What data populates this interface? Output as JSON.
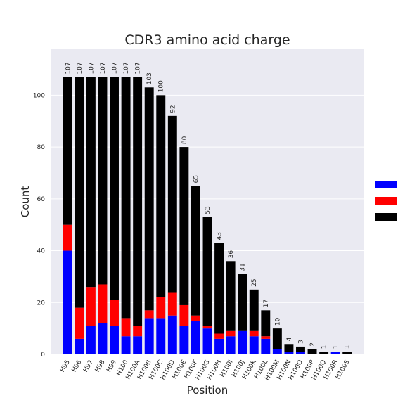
{
  "chart_data": {
    "type": "bar",
    "stacked": true,
    "title": "CDR3 amino acid charge",
    "xlabel": "Position",
    "ylabel": "Count",
    "ylim": [
      0,
      118
    ],
    "yticks": [
      0,
      20,
      40,
      60,
      80,
      100
    ],
    "grid": true,
    "legend_position": "right",
    "categories": [
      "H95",
      "H96",
      "H97",
      "H98",
      "H99",
      "H100",
      "H100A",
      "H100B",
      "H100C",
      "H100D",
      "H100E",
      "H100F",
      "H100G",
      "H100H",
      "H100I",
      "H100J",
      "H100K",
      "H100L",
      "H100M",
      "H100N",
      "H100O",
      "H100P",
      "H100Q",
      "H100R",
      "H100S"
    ],
    "series": [
      {
        "color": "#0000ff",
        "values": [
          40,
          6,
          11,
          12,
          11,
          7,
          7,
          14,
          14,
          15,
          11,
          13,
          10,
          6,
          7,
          9,
          7,
          6,
          2,
          1,
          1,
          0,
          0,
          1,
          0
        ]
      },
      {
        "color": "#ff0000",
        "values": [
          10,
          12,
          15,
          15,
          10,
          7,
          4,
          3,
          8,
          9,
          8,
          2,
          1,
          2,
          2,
          0,
          2,
          1,
          0,
          0,
          0,
          0,
          0,
          0,
          0
        ]
      },
      {
        "color": "#000000",
        "values": [
          57,
          89,
          81,
          80,
          86,
          93,
          96,
          86,
          78,
          68,
          61,
          50,
          42,
          35,
          27,
          22,
          16,
          10,
          8,
          3,
          2,
          2,
          1,
          0,
          1
        ]
      }
    ],
    "totals": [
      "107",
      "107",
      "107",
      "107",
      "107",
      "107",
      "107",
      "103",
      "100",
      "92",
      "80",
      "65",
      "53",
      "43",
      "36",
      "31",
      "25",
      "17",
      "10",
      "4",
      "3",
      "2",
      "1",
      "1",
      "1"
    ]
  }
}
